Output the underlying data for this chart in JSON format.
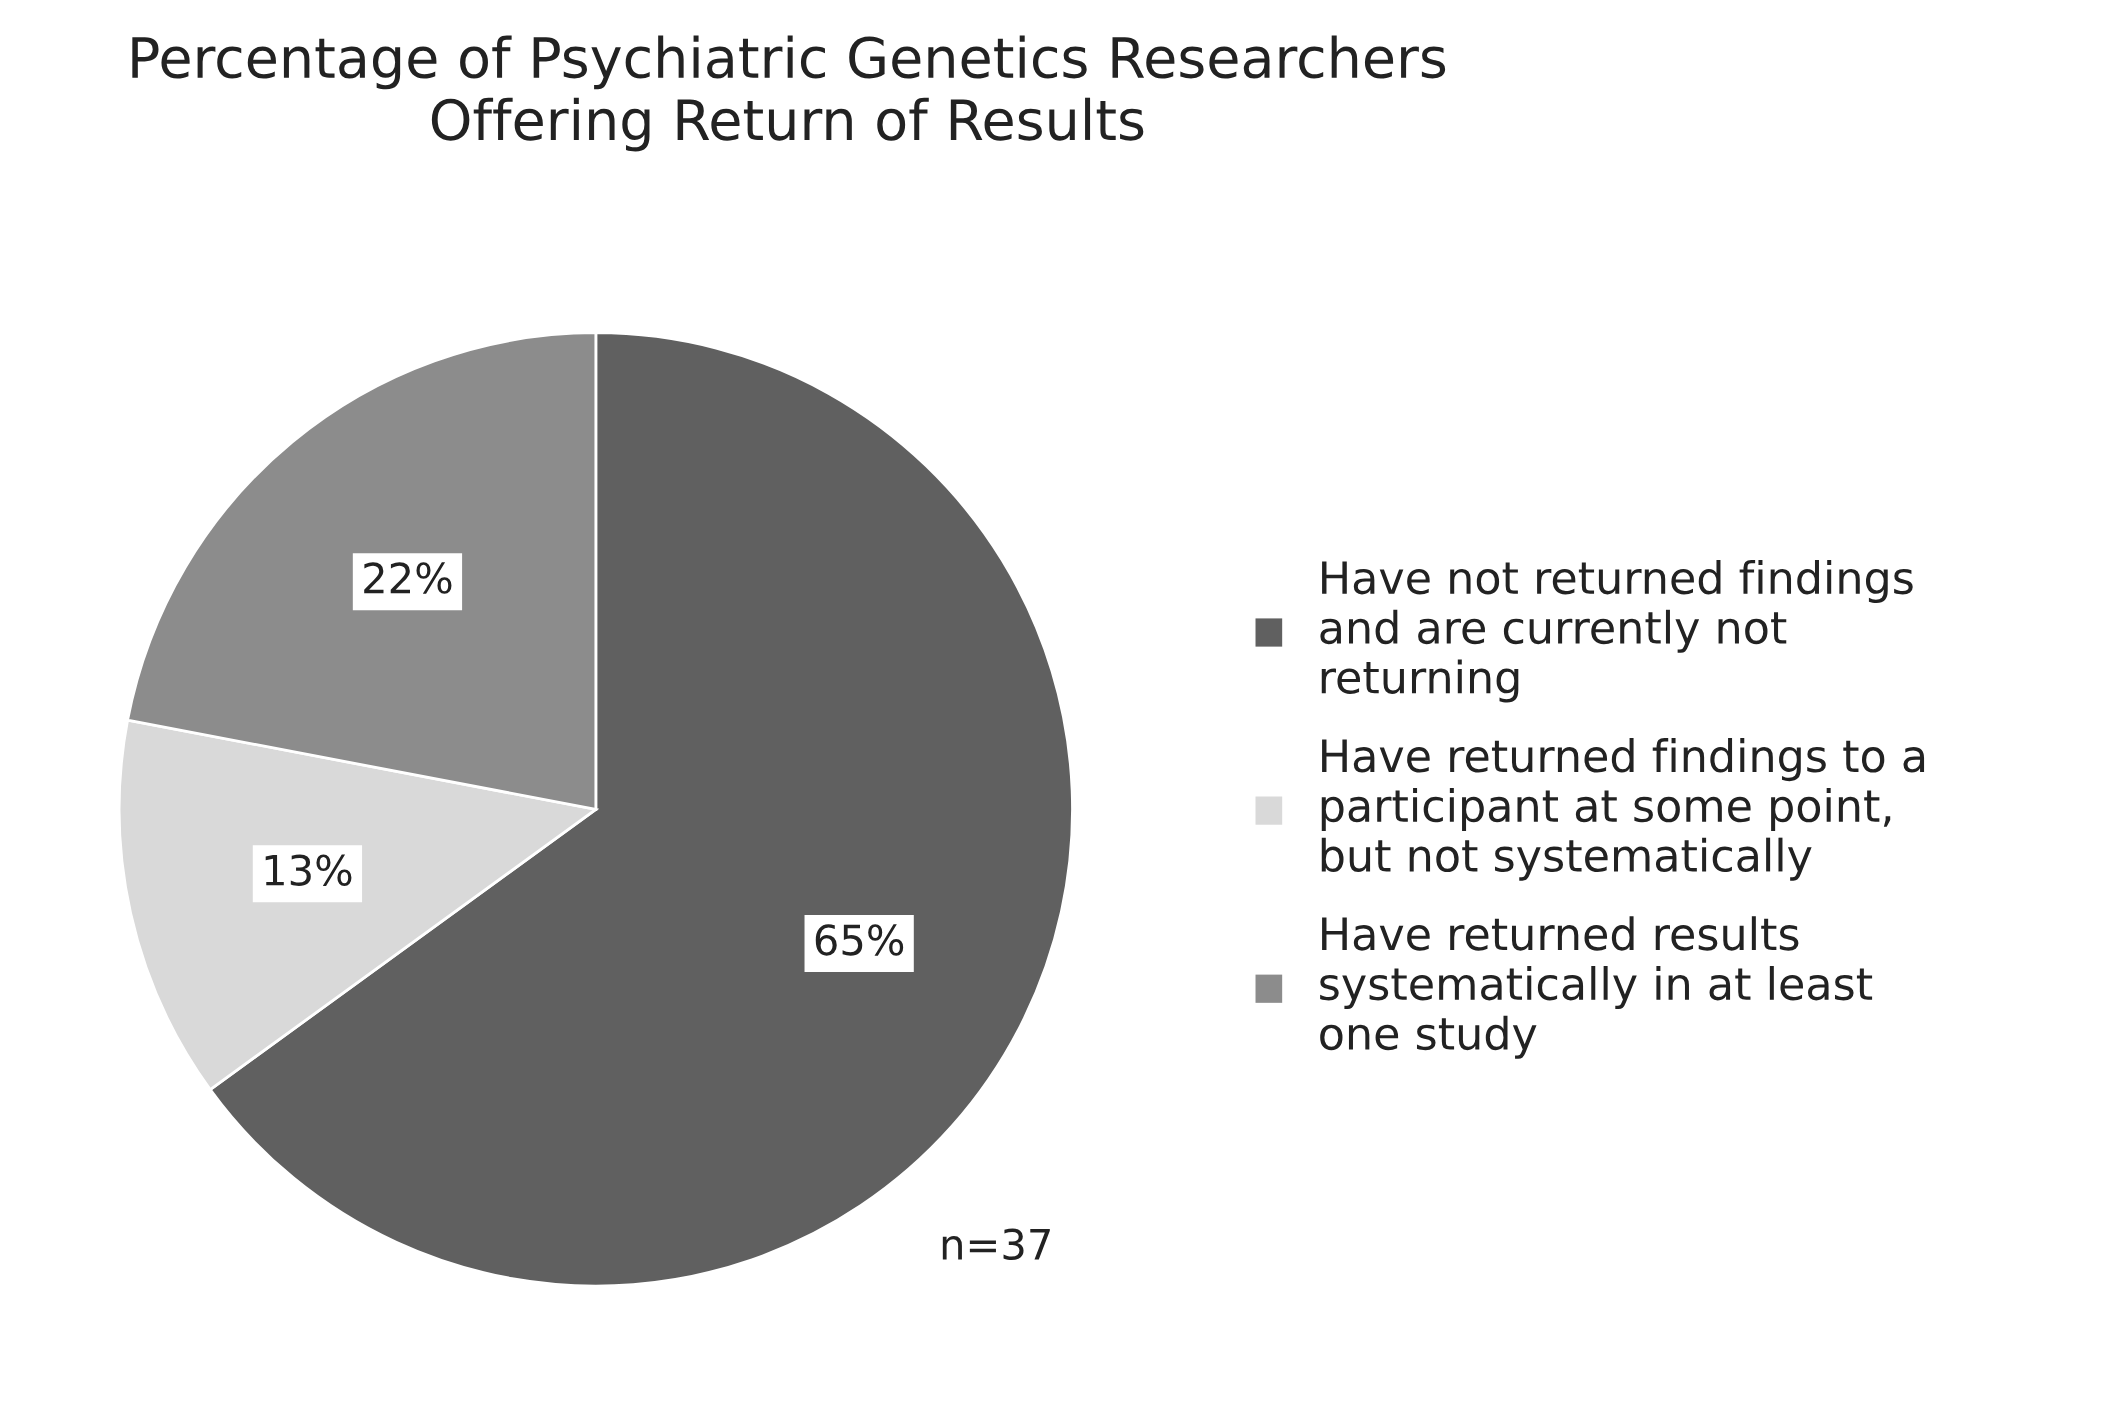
{
  "chart_data": {
    "type": "pie",
    "title": "Percentage of Psychiatric Genetics Researchers Offering Return of Results",
    "categories": [
      "Have not returned findings and are currently not returning",
      "Have returned findings to a participant at some point, but not systematically",
      "Have returned results systematically in at least one study"
    ],
    "values": [
      65,
      13,
      22
    ],
    "colors": [
      "#606060",
      "#d9d9d9",
      "#8c8c8c"
    ],
    "value_labels": [
      "65%",
      "13%",
      "22%"
    ],
    "legend": "right",
    "annotations": [
      "n=37"
    ]
  }
}
